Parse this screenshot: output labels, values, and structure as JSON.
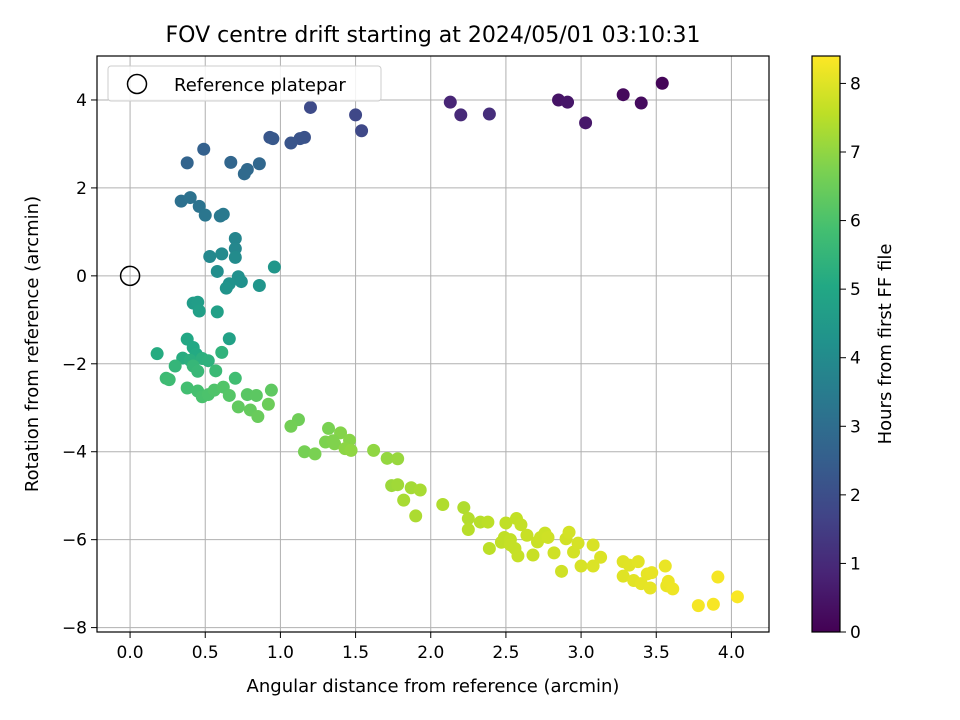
{
  "chart_data": {
    "type": "scatter",
    "title": "FOV centre drift starting at 2024/05/01 03:10:31",
    "xlabel": "Angular distance from reference (arcmin)",
    "ylabel": "Rotation from reference (arcmin)",
    "colorbar_label": "Hours from first FF file",
    "xlim": [
      -0.22,
      4.25
    ],
    "ylim": [
      -8.1,
      5.0
    ],
    "clim": [
      0,
      8.4
    ],
    "colormap": "viridis",
    "grid": true,
    "legend_position": "upper-left",
    "x_ticks": [
      0.0,
      0.5,
      1.0,
      1.5,
      2.0,
      2.5,
      3.0,
      3.5,
      4.0
    ],
    "x_tick_labels": [
      "0.0",
      "0.5",
      "1.0",
      "1.5",
      "2.0",
      "2.5",
      "3.0",
      "3.5",
      "4.0"
    ],
    "y_ticks": [
      -8,
      -6,
      -4,
      -2,
      0,
      2,
      4
    ],
    "y_tick_labels": [
      "−8",
      "−6",
      "−4",
      "−2",
      "0",
      "2",
      "4"
    ],
    "colorbar_ticks": [
      0,
      1,
      2,
      3,
      4,
      5,
      6,
      7,
      8
    ],
    "colorbar_tick_labels": [
      "0",
      "1",
      "2",
      "3",
      "4",
      "5",
      "6",
      "7",
      "8"
    ],
    "reference": {
      "name": "Reference platepar",
      "x": 0.0,
      "y": 0.0
    },
    "points": [
      [
        3.54,
        4.38,
        0.1
      ],
      [
        3.28,
        4.12,
        0.2
      ],
      [
        3.4,
        3.93,
        0.25
      ],
      [
        2.85,
        4.0,
        0.45
      ],
      [
        2.91,
        3.95,
        0.5
      ],
      [
        3.03,
        3.48,
        0.55
      ],
      [
        2.13,
        3.95,
        0.9
      ],
      [
        2.2,
        3.66,
        1.0
      ],
      [
        2.39,
        3.68,
        1.1
      ],
      [
        1.5,
        3.66,
        1.8
      ],
      [
        1.54,
        3.3,
        1.85
      ],
      [
        1.2,
        3.83,
        1.9
      ],
      [
        1.16,
        3.15,
        2.1
      ],
      [
        1.13,
        3.12,
        2.15
      ],
      [
        1.07,
        3.02,
        2.2
      ],
      [
        0.93,
        3.15,
        2.25
      ],
      [
        0.95,
        3.12,
        2.3
      ],
      [
        0.49,
        2.88,
        2.6
      ],
      [
        0.38,
        2.57,
        2.7
      ],
      [
        0.67,
        2.58,
        2.75
      ],
      [
        0.86,
        2.55,
        2.8
      ],
      [
        0.78,
        2.42,
        2.85
      ],
      [
        0.76,
        2.32,
        2.9
      ],
      [
        0.34,
        1.7,
        3.1
      ],
      [
        0.4,
        1.78,
        3.15
      ],
      [
        0.46,
        1.58,
        3.2
      ],
      [
        0.5,
        1.38,
        3.3
      ],
      [
        0.6,
        1.36,
        3.35
      ],
      [
        0.62,
        1.4,
        3.4
      ],
      [
        0.7,
        0.85,
        3.8
      ],
      [
        0.7,
        0.62,
        3.85
      ],
      [
        0.53,
        0.44,
        3.9
      ],
      [
        0.61,
        0.5,
        3.95
      ],
      [
        0.7,
        0.42,
        4.0
      ],
      [
        0.58,
        0.1,
        4.1
      ],
      [
        0.72,
        -0.02,
        4.15
      ],
      [
        0.74,
        -0.13,
        4.2
      ],
      [
        0.66,
        -0.18,
        4.25
      ],
      [
        0.64,
        -0.28,
        4.3
      ],
      [
        0.86,
        -0.22,
        4.35
      ],
      [
        0.96,
        0.2,
        4.4
      ],
      [
        0.42,
        -0.62,
        4.6
      ],
      [
        0.45,
        -0.6,
        4.65
      ],
      [
        0.46,
        -0.8,
        4.7
      ],
      [
        0.58,
        -0.82,
        4.75
      ],
      [
        0.66,
        -1.43,
        4.8
      ],
      [
        0.38,
        -1.44,
        5.0
      ],
      [
        0.42,
        -1.63,
        5.05
      ],
      [
        0.44,
        -1.78,
        5.1
      ],
      [
        0.18,
        -1.77,
        5.15
      ],
      [
        0.35,
        -1.87,
        5.2
      ],
      [
        0.4,
        -1.92,
        5.25
      ],
      [
        0.48,
        -1.88,
        5.3
      ],
      [
        0.52,
        -1.93,
        5.35
      ],
      [
        0.61,
        -1.74,
        5.4
      ],
      [
        0.3,
        -2.05,
        5.5
      ],
      [
        0.42,
        -2.05,
        5.55
      ],
      [
        0.45,
        -2.17,
        5.6
      ],
      [
        0.57,
        -2.16,
        5.65
      ],
      [
        0.24,
        -2.33,
        5.7
      ],
      [
        0.26,
        -2.36,
        5.75
      ],
      [
        0.7,
        -2.33,
        5.8
      ],
      [
        0.38,
        -2.55,
        5.85
      ],
      [
        0.45,
        -2.62,
        5.9
      ],
      [
        0.48,
        -2.75,
        5.95
      ],
      [
        0.52,
        -2.7,
        6.0
      ],
      [
        0.56,
        -2.6,
        6.05
      ],
      [
        0.62,
        -2.53,
        6.1
      ],
      [
        0.66,
        -2.72,
        6.15
      ],
      [
        0.78,
        -2.7,
        6.2
      ],
      [
        0.84,
        -2.72,
        6.25
      ],
      [
        0.94,
        -2.6,
        6.3
      ],
      [
        0.72,
        -2.98,
        6.35
      ],
      [
        0.8,
        -3.05,
        6.4
      ],
      [
        0.85,
        -3.2,
        6.45
      ],
      [
        0.92,
        -2.92,
        6.5
      ],
      [
        1.12,
        -3.27,
        6.55
      ],
      [
        1.07,
        -3.42,
        6.6
      ],
      [
        1.16,
        -4.0,
        6.65
      ],
      [
        1.23,
        -4.05,
        6.7
      ],
      [
        1.32,
        -3.47,
        6.7
      ],
      [
        1.3,
        -3.78,
        6.75
      ],
      [
        1.36,
        -3.82,
        6.8
      ],
      [
        1.4,
        -3.57,
        6.85
      ],
      [
        1.46,
        -3.74,
        6.9
      ],
      [
        1.43,
        -3.93,
        6.95
      ],
      [
        1.47,
        -3.97,
        7.0
      ],
      [
        1.35,
        -3.75,
        6.8
      ],
      [
        1.62,
        -3.97,
        7.0
      ],
      [
        1.71,
        -4.15,
        7.05
      ],
      [
        1.78,
        -4.16,
        7.1
      ],
      [
        1.74,
        -4.77,
        7.15
      ],
      [
        1.78,
        -4.75,
        7.2
      ],
      [
        1.87,
        -4.82,
        7.25
      ],
      [
        1.93,
        -4.87,
        7.3
      ],
      [
        1.82,
        -5.1,
        7.3
      ],
      [
        1.9,
        -5.46,
        7.35
      ],
      [
        2.08,
        -5.2,
        7.4
      ],
      [
        2.22,
        -5.27,
        7.4
      ],
      [
        2.25,
        -5.52,
        7.45
      ],
      [
        2.25,
        -5.77,
        7.5
      ],
      [
        2.33,
        -5.6,
        7.5
      ],
      [
        2.38,
        -5.6,
        7.55
      ],
      [
        2.39,
        -6.2,
        7.55
      ],
      [
        2.47,
        -6.06,
        7.6
      ],
      [
        2.49,
        -5.95,
        7.6
      ],
      [
        2.53,
        -6.0,
        7.62
      ],
      [
        2.53,
        -6.12,
        7.65
      ],
      [
        2.56,
        -6.2,
        7.65
      ],
      [
        2.58,
        -6.37,
        7.68
      ],
      [
        2.5,
        -5.62,
        7.6
      ],
      [
        2.57,
        -5.52,
        7.62
      ],
      [
        2.6,
        -5.66,
        7.65
      ],
      [
        2.64,
        -5.9,
        7.7
      ],
      [
        2.68,
        -6.35,
        7.7
      ],
      [
        2.71,
        -6.05,
        7.72
      ],
      [
        2.73,
        -5.95,
        7.75
      ],
      [
        2.76,
        -5.85,
        7.75
      ],
      [
        2.78,
        -5.95,
        7.78
      ],
      [
        2.82,
        -6.3,
        7.8
      ],
      [
        2.87,
        -6.72,
        7.8
      ],
      [
        2.9,
        -5.98,
        7.82
      ],
      [
        2.92,
        -5.83,
        7.85
      ],
      [
        2.95,
        -6.28,
        7.85
      ],
      [
        2.98,
        -6.08,
        7.88
      ],
      [
        3.0,
        -6.6,
        7.9
      ],
      [
        3.08,
        -6.12,
        7.92
      ],
      [
        3.08,
        -6.6,
        7.95
      ],
      [
        3.13,
        -6.4,
        7.95
      ],
      [
        3.28,
        -6.5,
        8.0
      ],
      [
        3.28,
        -6.83,
        8.0
      ],
      [
        3.32,
        -6.58,
        8.02
      ],
      [
        3.35,
        -6.93,
        8.05
      ],
      [
        3.38,
        -6.5,
        8.05
      ],
      [
        3.4,
        -7.0,
        8.08
      ],
      [
        3.44,
        -6.78,
        8.1
      ],
      [
        3.46,
        -7.1,
        8.1
      ],
      [
        3.47,
        -6.75,
        8.12
      ],
      [
        3.56,
        -6.6,
        8.15
      ],
      [
        3.57,
        -7.05,
        8.15
      ],
      [
        3.58,
        -6.95,
        8.18
      ],
      [
        3.61,
        -7.12,
        8.2
      ],
      [
        3.78,
        -7.5,
        8.3
      ],
      [
        3.88,
        -7.47,
        8.32
      ],
      [
        3.91,
        -6.85,
        8.3
      ],
      [
        4.04,
        -7.3,
        8.35
      ]
    ]
  }
}
